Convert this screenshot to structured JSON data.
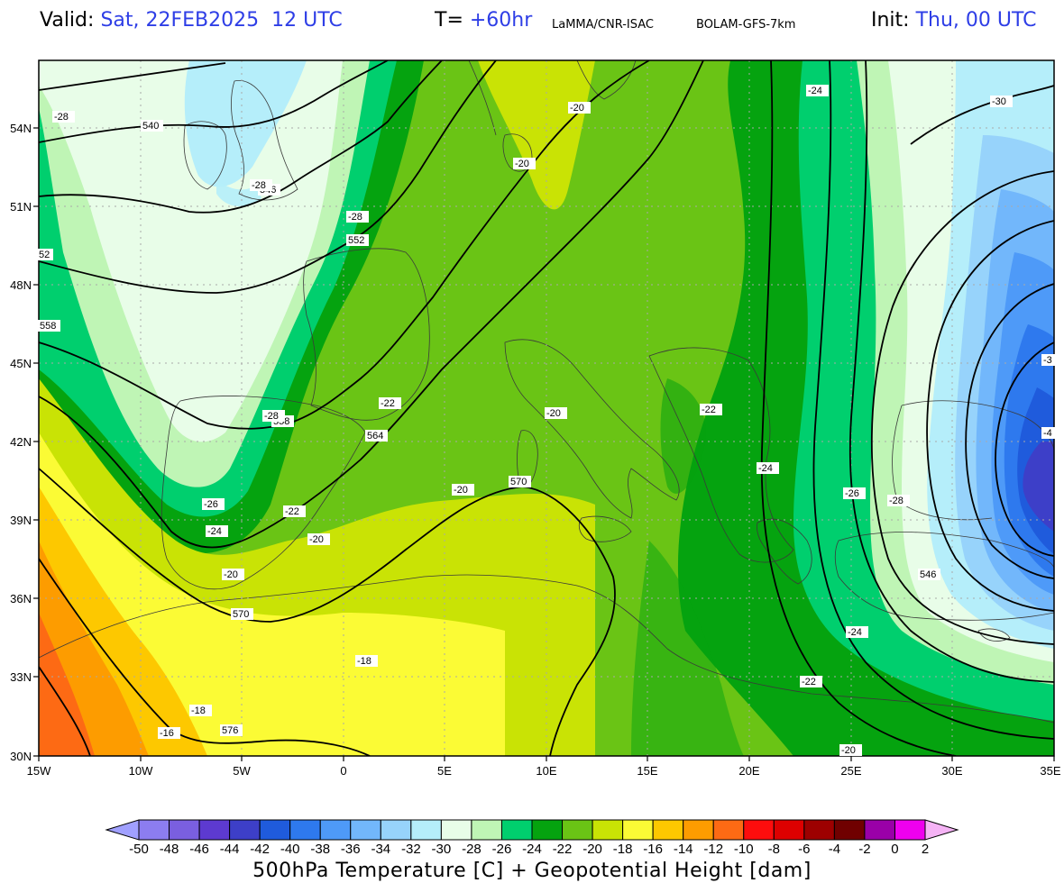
{
  "header": {
    "valid_key": "Valid:",
    "valid_value": "Sat, 22FEB2025  12 UTC",
    "t_key": "T=",
    "t_value": "+60hr",
    "source": "LaMMA/CNR-ISAC",
    "model": "BOLAM-GFS-7km",
    "init_key": "Init:",
    "init_value": "Thu, 00 UTC"
  },
  "map": {
    "lat_ticks": [
      "54N",
      "51N",
      "48N",
      "45N",
      "42N",
      "39N",
      "36N",
      "33N",
      "30N"
    ],
    "lon_ticks": [
      "15W",
      "10W",
      "5W",
      "0",
      "5E",
      "10E",
      "15E",
      "20E",
      "25E",
      "30E",
      "35E"
    ],
    "height_labels": [
      "540",
      "546",
      "552",
      "52",
      "558",
      "558",
      "564",
      "570",
      "570",
      "576",
      "546"
    ],
    "temp_labels": [
      "-28",
      "-28",
      "-28",
      "-28",
      "-20",
      "-20",
      "-22",
      "-22",
      "-22",
      "-26",
      "-24",
      "-20",
      "-20",
      "-20",
      "-18",
      "-18",
      "-16",
      "-24",
      "-30",
      "-3",
      "-4",
      "-24",
      "-26",
      "-28",
      "-24",
      "-22",
      "-20",
      "-20"
    ]
  },
  "colorbar": {
    "ticks": [
      "-50",
      "-48",
      "-46",
      "-44",
      "-42",
      "-40",
      "-38",
      "-36",
      "-34",
      "-32",
      "-30",
      "-28",
      "-26",
      "-24",
      "-22",
      "-20",
      "-18",
      "-16",
      "-14",
      "-12",
      "-10",
      "-8",
      "-6",
      "-4",
      "-2",
      "0",
      "2"
    ],
    "colors": [
      "#a0a0ff",
      "#8c7df0",
      "#7a5fe0",
      "#5d3ad0",
      "#3d3fc8",
      "#1f5bdc",
      "#2e79ee",
      "#4e9af8",
      "#72b7fb",
      "#97d3fb",
      "#b5eefa",
      "#e8fde8",
      "#bff5b5",
      "#00cf6e",
      "#05a30f",
      "#6ac415",
      "#c9e305",
      "#fbfb35",
      "#fdc800",
      "#fd9c00",
      "#fd6a14",
      "#fd0d0d",
      "#dd0000",
      "#9d0000",
      "#700000",
      "#9a00a8",
      "#ef00ef",
      "#f5b3f5"
    ],
    "title": "500hPa Temperature [C] + Geopotential Height [dam]"
  }
}
